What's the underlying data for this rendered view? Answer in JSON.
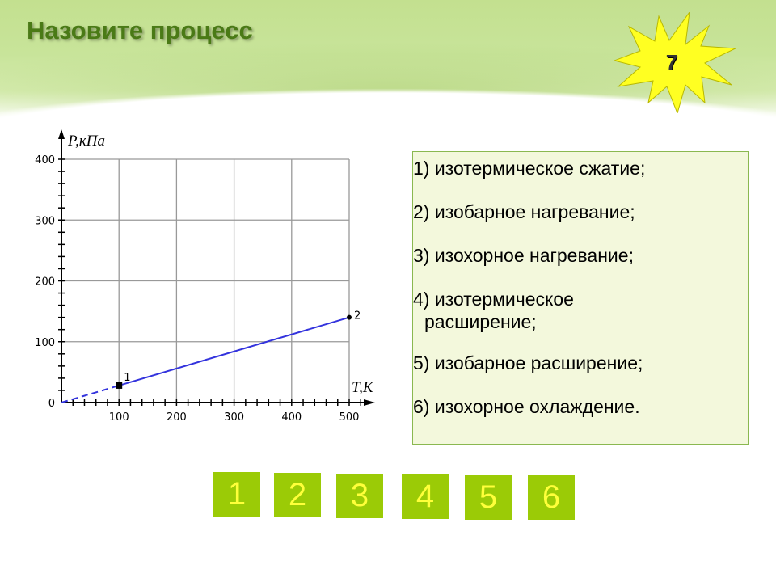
{
  "slide": {
    "title": "Назовите процесс",
    "badge_number": "7",
    "colors": {
      "title": "#4a7a16",
      "badge": "#ffff22",
      "buttons": "#9bcb06",
      "button_text": "#ffff3a",
      "answer_box": "#f3f8dc",
      "line": "#3333dd"
    }
  },
  "chart_data": {
    "type": "line",
    "xlabel": "T,K",
    "ylabel": "P,кПа",
    "xlim": [
      0,
      500
    ],
    "ylim": [
      0,
      400
    ],
    "x_ticks": [
      "100",
      "200",
      "300",
      "400",
      "500"
    ],
    "y_ticks": [
      "0",
      "100",
      "200",
      "300",
      "400"
    ],
    "grid": true,
    "points": [
      {
        "label": "1",
        "x": 100,
        "y": 28
      },
      {
        "label": "2",
        "x": 500,
        "y": 140
      }
    ],
    "dashed_extension": {
      "from": [
        0,
        0
      ],
      "to": [
        100,
        28
      ]
    }
  },
  "answers": [
    {
      "num": "1)",
      "text": "изотермическое сжатие;"
    },
    {
      "num": "2)",
      "text": "изобарное нагревание;"
    },
    {
      "num": "3)",
      "text": "изохорное нагревание;"
    },
    {
      "num": "4)",
      "text": "изотермическое",
      "cont": "расширение;"
    },
    {
      "num": "5)",
      "text": "изобарное расширение;"
    },
    {
      "num": "6)",
      "text": "изохорное охлаждение."
    }
  ],
  "buttons": [
    "1",
    "2",
    "3",
    "4",
    "5",
    "6"
  ]
}
